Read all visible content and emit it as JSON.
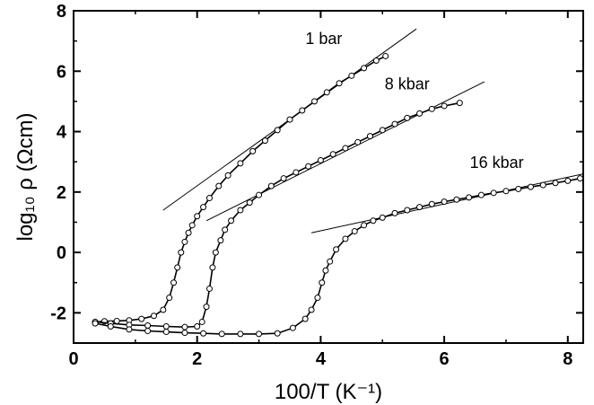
{
  "chart_data": {
    "type": "scatter",
    "xlabel": "100/T (K⁻¹)",
    "ylabel": "log₁₀ ρ  (Ωcm)",
    "xlim": [
      0,
      8.25
    ],
    "ylim": [
      -3,
      8
    ],
    "xticks": [
      0,
      2,
      4,
      6,
      8
    ],
    "yticks": [
      -2,
      0,
      2,
      4,
      6,
      8
    ],
    "grid": false,
    "series": [
      {
        "name": "1 bar",
        "marker": "open-circle",
        "x": [
          0.35,
          0.5,
          0.7,
          0.9,
          1.1,
          1.3,
          1.45,
          1.55,
          1.62,
          1.68,
          1.74,
          1.8,
          1.86,
          1.92,
          2.0,
          2.1,
          2.2,
          2.35,
          2.5,
          2.7,
          2.9,
          3.1,
          3.3,
          3.5,
          3.7,
          3.9,
          4.1,
          4.3,
          4.5,
          4.7,
          4.9,
          5.05
        ],
        "y": [
          -2.3,
          -2.28,
          -2.27,
          -2.25,
          -2.2,
          -2.1,
          -1.9,
          -1.5,
          -1.0,
          -0.5,
          0.0,
          0.35,
          0.65,
          0.9,
          1.2,
          1.5,
          1.8,
          2.2,
          2.55,
          2.95,
          3.35,
          3.7,
          4.05,
          4.4,
          4.7,
          5.0,
          5.3,
          5.6,
          5.85,
          6.1,
          6.35,
          6.5
        ]
      },
      {
        "name": "8 kbar",
        "marker": "open-circle",
        "x": [
          0.35,
          0.6,
          0.9,
          1.2,
          1.5,
          1.8,
          2.0,
          2.08,
          2.15,
          2.2,
          2.25,
          2.3,
          2.38,
          2.45,
          2.55,
          2.7,
          2.85,
          3.0,
          3.2,
          3.4,
          3.6,
          3.8,
          4.0,
          4.2,
          4.4,
          4.6,
          4.8,
          5.0,
          5.2,
          5.4,
          5.6,
          5.8,
          6.0,
          6.25
        ],
        "y": [
          -2.3,
          -2.35,
          -2.4,
          -2.42,
          -2.45,
          -2.47,
          -2.45,
          -2.3,
          -1.8,
          -1.2,
          -0.5,
          0.0,
          0.4,
          0.75,
          1.05,
          1.4,
          1.65,
          1.9,
          2.2,
          2.45,
          2.65,
          2.85,
          3.05,
          3.25,
          3.45,
          3.65,
          3.85,
          4.05,
          4.25,
          4.45,
          4.6,
          4.75,
          4.85,
          4.95
        ]
      },
      {
        "name": "16 kbar",
        "marker": "open-circle",
        "x": [
          0.35,
          0.6,
          0.9,
          1.2,
          1.5,
          1.8,
          2.1,
          2.4,
          2.7,
          3.0,
          3.3,
          3.55,
          3.75,
          3.85,
          3.95,
          4.02,
          4.08,
          4.15,
          4.25,
          4.4,
          4.55,
          4.7,
          4.85,
          5.0,
          5.2,
          5.4,
          5.6,
          5.8,
          6.0,
          6.2,
          6.4,
          6.6,
          6.8,
          7.0,
          7.2,
          7.4,
          7.6,
          7.8,
          8.0,
          8.2
        ],
        "y": [
          -2.35,
          -2.45,
          -2.55,
          -2.6,
          -2.63,
          -2.66,
          -2.68,
          -2.7,
          -2.7,
          -2.7,
          -2.68,
          -2.5,
          -2.2,
          -1.9,
          -1.5,
          -1.0,
          -0.6,
          -0.3,
          0.1,
          0.45,
          0.7,
          0.9,
          1.05,
          1.15,
          1.3,
          1.4,
          1.5,
          1.6,
          1.68,
          1.75,
          1.82,
          1.9,
          1.97,
          2.03,
          2.1,
          2.17,
          2.23,
          2.3,
          2.37,
          2.45
        ]
      }
    ],
    "fit_lines": [
      {
        "x": [
          1.45,
          5.55
        ],
        "y": [
          1.4,
          7.4
        ]
      },
      {
        "x": [
          2.15,
          6.65
        ],
        "y": [
          1.05,
          5.65
        ]
      },
      {
        "x": [
          3.85,
          8.25
        ],
        "y": [
          0.65,
          2.6
        ]
      }
    ],
    "annotations": [
      {
        "text": "1 bar",
        "x": 4.05,
        "y": 6.9
      },
      {
        "text": "8 kbar",
        "x": 5.4,
        "y": 5.4
      },
      {
        "text": "16 kbar",
        "x": 6.85,
        "y": 2.8
      }
    ]
  }
}
